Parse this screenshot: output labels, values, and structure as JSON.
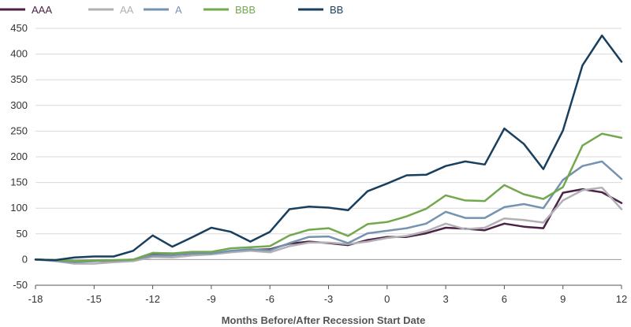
{
  "chart_data": {
    "type": "line",
    "title": "",
    "xlabel": "Months Before/After Recession Start Date",
    "ylabel": "",
    "xlim": [
      -18,
      12
    ],
    "ylim": [
      -50,
      450
    ],
    "x_ticks": [
      -18,
      -15,
      -12,
      -9,
      -6,
      -3,
      0,
      3,
      6,
      9,
      12
    ],
    "y_ticks": [
      -50,
      0,
      50,
      100,
      150,
      200,
      250,
      300,
      350,
      400,
      450
    ],
    "grid": "horizontal",
    "legend_position": "top",
    "x": [
      -18,
      -17,
      -16,
      -15,
      -14,
      -13,
      -12,
      -11,
      -10,
      -9,
      -8,
      -7,
      -6,
      -5,
      -4,
      -3,
      -2,
      -1,
      0,
      1,
      2,
      3,
      4,
      5,
      6,
      7,
      8,
      9,
      10,
      11,
      12
    ],
    "series": [
      {
        "name": "AAA",
        "color": "#4b2245",
        "values": [
          0,
          -1,
          -4,
          -3,
          -2,
          -1,
          12,
          12,
          9,
          11,
          16,
          19,
          20,
          31,
          35,
          32,
          28,
          38,
          44,
          44,
          51,
          62,
          60,
          57,
          70,
          64,
          61,
          130,
          137,
          131,
          110
        ]
      },
      {
        "name": "AA",
        "color": "#b3b0b5",
        "values": [
          0,
          -3,
          -8,
          -8,
          -5,
          -3,
          5,
          4,
          8,
          10,
          14,
          17,
          14,
          26,
          33,
          33,
          30,
          35,
          42,
          46,
          55,
          70,
          59,
          62,
          80,
          77,
          72,
          115,
          135,
          140,
          98
        ]
      },
      {
        "name": "A",
        "color": "#7593b0",
        "values": [
          0,
          -2,
          -5,
          -3,
          -2,
          0,
          8,
          8,
          12,
          12,
          17,
          20,
          18,
          32,
          44,
          45,
          32,
          51,
          56,
          61,
          70,
          93,
          81,
          81,
          102,
          108,
          100,
          155,
          182,
          191,
          157
        ]
      },
      {
        "name": "BBB",
        "color": "#72a84e",
        "values": [
          0,
          -1,
          -3,
          -2,
          -1,
          0,
          13,
          12,
          15,
          15,
          22,
          24,
          26,
          47,
          58,
          61,
          46,
          69,
          73,
          84,
          99,
          125,
          115,
          114,
          145,
          127,
          118,
          141,
          222,
          245,
          237
        ]
      },
      {
        "name": "BB",
        "color": "#183f5e",
        "values": [
          0,
          -1,
          4,
          6,
          6,
          17,
          47,
          25,
          43,
          62,
          54,
          35,
          54,
          98,
          103,
          101,
          96,
          133,
          148,
          164,
          165,
          182,
          191,
          185,
          255,
          225,
          176,
          251,
          378,
          436,
          385
        ]
      }
    ]
  }
}
